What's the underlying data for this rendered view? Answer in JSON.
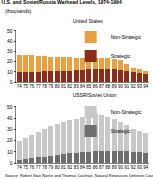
{
  "title": "U.S. and Soviet/Russia Warhead Levels, 1974-1994",
  "subtitle": "(thousands)",
  "source": "Source: Robert Stan Norris and Thomas Cochran, Natural Resources Defense Council",
  "chart_data": [
    {
      "type": "bar",
      "title": "United States",
      "stacked": true,
      "grid": false,
      "categories": [
        "74",
        "75",
        "76",
        "77",
        "78",
        "79",
        "80",
        "81",
        "82",
        "83",
        "84",
        "85",
        "86",
        "87",
        "88",
        "89",
        "90",
        "91",
        "92",
        "93",
        "94"
      ],
      "series": [
        {
          "name": "Non-Strategic",
          "color": "#e8a040",
          "values": [
            17.0,
            16.8,
            16.0,
            15.4,
            14.8,
            14.3,
            13.8,
            13.3,
            13.0,
            12.3,
            11.8,
            11.3,
            11.2,
            11.0,
            10.5,
            10.3,
            9.5,
            7.5,
            4.5,
            3.5,
            2.8
          ]
        },
        {
          "name": "Strategic",
          "color": "#8c2d19",
          "values": [
            9.4,
            9.8,
            10.0,
            10.2,
            10.3,
            10.5,
            10.8,
            11.0,
            11.2,
            11.6,
            12.0,
            12.3,
            12.5,
            12.8,
            12.7,
            12.6,
            12.0,
            10.5,
            9.5,
            8.8,
            8.2
          ]
        }
      ],
      "ylim": [
        0,
        50
      ],
      "yticks": [
        0,
        10,
        20,
        30,
        40,
        50
      ]
    },
    {
      "type": "bar",
      "title": "USSR/Soviet Union",
      "stacked": true,
      "grid": false,
      "categories": [
        "74",
        "75",
        "76",
        "77",
        "78",
        "79",
        "80",
        "81",
        "82",
        "83",
        "84",
        "85",
        "86",
        "87",
        "88",
        "89",
        "90",
        "91",
        "92",
        "93",
        "94"
      ],
      "series": [
        {
          "name": "Non-Strategic",
          "color": "#c8c8c8",
          "values": [
            16.5,
            18.5,
            20.5,
            22.5,
            24.5,
            26.0,
            27.5,
            28.5,
            29.5,
            30.5,
            31.5,
            32.5,
            33.5,
            31.5,
            30.0,
            28.0,
            26.0,
            23.0,
            20.0,
            19.0,
            17.5
          ]
        },
        {
          "name": "Strategic",
          "color": "#6e6e6e",
          "values": [
            2.9,
            3.5,
            4.3,
            5.0,
            5.8,
            6.6,
            7.3,
            8.0,
            8.5,
            9.0,
            9.5,
            10.0,
            10.5,
            11.0,
            11.0,
            11.0,
            10.8,
            10.5,
            10.0,
            9.5,
            9.0
          ]
        }
      ],
      "ylim": [
        0,
        50
      ],
      "yticks": [
        0,
        10,
        20,
        30,
        40,
        50
      ]
    }
  ]
}
